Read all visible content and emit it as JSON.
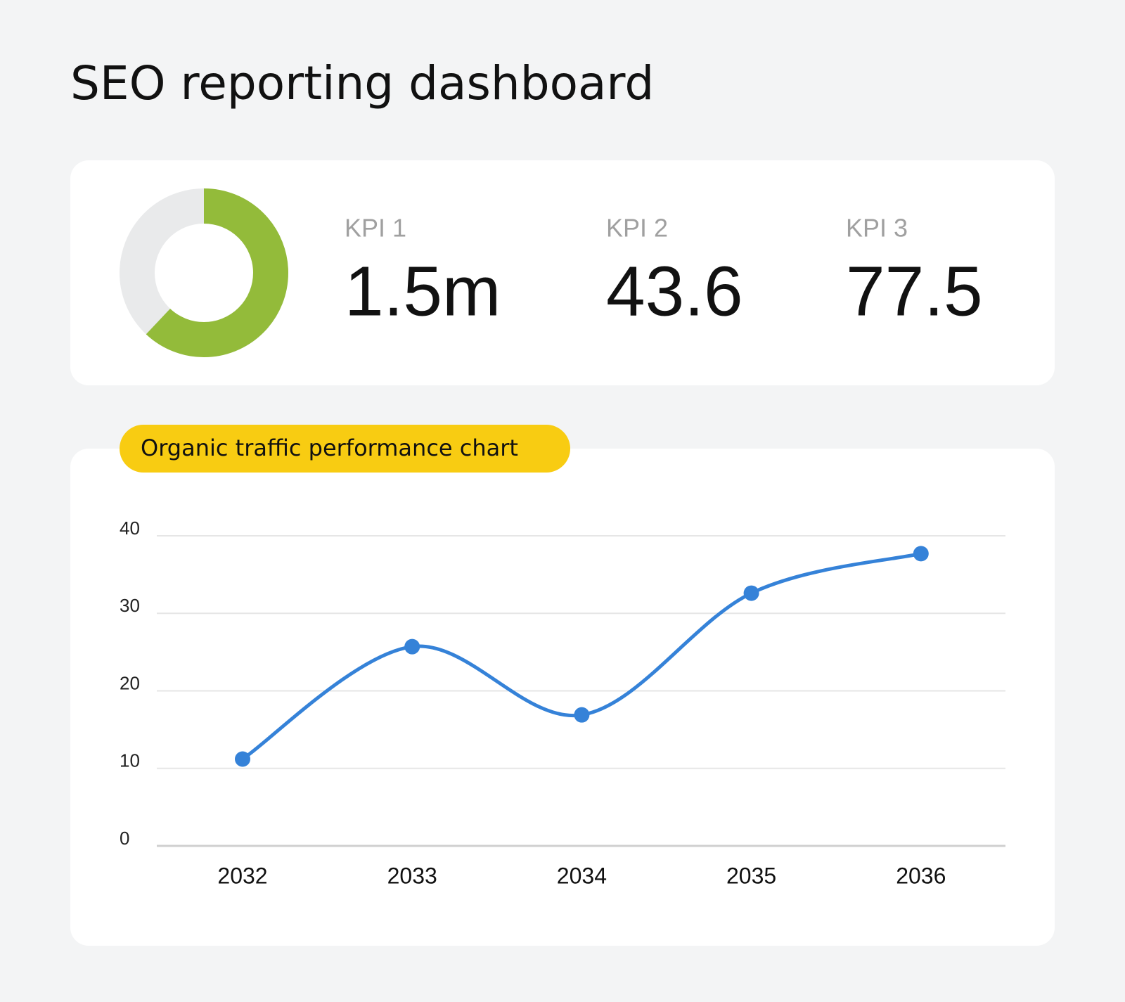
{
  "title": "SEO reporting dashboard",
  "kpi_card": {
    "donut": {
      "value": 62,
      "color": "#93bb3a",
      "track_color": "#e9eaeb"
    },
    "kpis": [
      {
        "label": "KPI 1",
        "value": "1.5m"
      },
      {
        "label": "KPI 2",
        "value": "43.6"
      },
      {
        "label": "KPI 3",
        "value": "77.5"
      }
    ]
  },
  "chart_data": {
    "type": "line",
    "title": "Organic traffic performance chart",
    "categories": [
      "2032",
      "2033",
      "2034",
      "2035",
      "2036"
    ],
    "series": [
      {
        "color": "#3582d8",
        "values": [
          11.2,
          25.7,
          16.9,
          32.6,
          37.7
        ]
      }
    ],
    "ylim": [
      0,
      40
    ],
    "yticks": [
      0,
      10,
      20,
      30,
      40
    ],
    "grid": true
  }
}
